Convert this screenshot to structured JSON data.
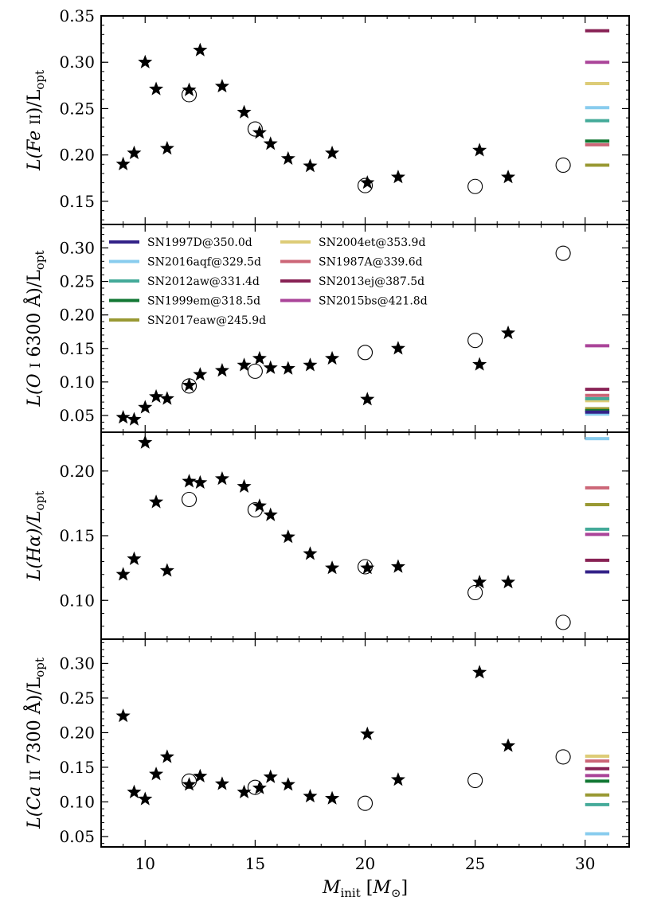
{
  "chart_data": {
    "type": "scatter",
    "xlabel": "M_init [M_⊙]",
    "xlim": [
      8,
      32
    ],
    "xticks": [
      10,
      15,
      20,
      25,
      30
    ],
    "colors": {
      "SN1997D@350.0d": "#332288",
      "SN2016aqf@329.5d": "#88ccee",
      "SN2012aw@331.4d": "#44aa99",
      "SN1999em@318.5d": "#117733",
      "SN2017eaw@245.9d": "#999933",
      "SN2004et@353.9d": "#ddcc77",
      "SN1987A@339.6d": "#cc6677",
      "SN2013ej@387.5d": "#882255",
      "SN2015bs@421.8d": "#aa4499"
    },
    "legend": {
      "location": "upper-left of panel 2",
      "entries": [
        "SN1997D@350.0d",
        "SN2016aqf@329.5d",
        "SN2012aw@331.4d",
        "SN1999em@318.5d",
        "SN2017eaw@245.9d",
        "SN2004et@353.9d",
        "SN1987A@339.6d",
        "SN2013ej@387.5d",
        "SN2015bs@421.8d"
      ]
    },
    "panels": [
      {
        "ylabel_main": "L(Fe ",
        "ylabel_ion": "II",
        "ylabel_tail": ")/L",
        "ylabel_sub": "opt",
        "ylim": [
          0.125,
          0.35
        ],
        "yticks": [
          0.15,
          0.2,
          0.25,
          0.3,
          0.35
        ],
        "ytick_labels": [
          "0.15",
          "0.20",
          "0.25",
          "0.30",
          "0.35"
        ],
        "stars": [
          [
            9.0,
            0.19
          ],
          [
            9.5,
            0.202
          ],
          [
            10.0,
            0.3
          ],
          [
            10.5,
            0.271
          ],
          [
            11.0,
            0.207
          ],
          [
            12.0,
            0.27
          ],
          [
            12.5,
            0.313
          ],
          [
            13.5,
            0.274
          ],
          [
            14.5,
            0.246
          ],
          [
            15.2,
            0.224
          ],
          [
            15.7,
            0.212
          ],
          [
            16.5,
            0.196
          ],
          [
            17.5,
            0.188
          ],
          [
            18.5,
            0.202
          ],
          [
            20.1,
            0.17
          ],
          [
            21.5,
            0.176
          ],
          [
            25.2,
            0.205
          ],
          [
            26.5,
            0.176
          ]
        ],
        "circles": [
          [
            12.0,
            0.265
          ],
          [
            15.0,
            0.228
          ],
          [
            20.0,
            0.167
          ],
          [
            25.0,
            0.166
          ],
          [
            29.0,
            0.189
          ]
        ],
        "observed": [
          [
            "SN2013ej@387.5d",
            0.334
          ],
          [
            "SN2015bs@421.8d",
            0.3
          ],
          [
            "SN2004et@353.9d",
            0.277
          ],
          [
            "SN2016aqf@329.5d",
            0.251
          ],
          [
            "SN2012aw@331.4d",
            0.237
          ],
          [
            "SN1999em@318.5d",
            0.215
          ],
          [
            "SN1987A@339.6d",
            0.211
          ],
          [
            "SN2017eaw@245.9d",
            0.189
          ]
        ]
      },
      {
        "ylabel_main": "L(O ",
        "ylabel_ion": "I",
        "ylabel_tail": " 6300 Å)/L",
        "ylabel_sub": "opt",
        "ylim": [
          0.025,
          0.335
        ],
        "yticks": [
          0.05,
          0.1,
          0.15,
          0.2,
          0.25,
          0.3
        ],
        "ytick_labels": [
          "0.05",
          "0.10",
          "0.15",
          "0.20",
          "0.25",
          "0.30"
        ],
        "stars": [
          [
            9.0,
            0.047
          ],
          [
            9.5,
            0.044
          ],
          [
            10.0,
            0.062
          ],
          [
            10.5,
            0.078
          ],
          [
            11.0,
            0.075
          ],
          [
            12.0,
            0.095
          ],
          [
            12.5,
            0.111
          ],
          [
            13.5,
            0.117
          ],
          [
            14.5,
            0.125
          ],
          [
            15.2,
            0.135
          ],
          [
            15.7,
            0.121
          ],
          [
            16.5,
            0.12
          ],
          [
            17.5,
            0.125
          ],
          [
            18.5,
            0.135
          ],
          [
            20.1,
            0.074
          ],
          [
            21.5,
            0.15
          ],
          [
            25.2,
            0.126
          ],
          [
            26.5,
            0.173
          ]
        ],
        "circles": [
          [
            12.0,
            0.094
          ],
          [
            15.0,
            0.116
          ],
          [
            20.0,
            0.144
          ],
          [
            25.0,
            0.162
          ],
          [
            29.0,
            0.292
          ]
        ],
        "observed": [
          [
            "SN2015bs@421.8d",
            0.154
          ],
          [
            "SN2013ej@387.5d",
            0.089
          ],
          [
            "SN1987A@339.6d",
            0.08
          ],
          [
            "SN2004et@353.9d",
            0.072
          ],
          [
            "SN2012aw@331.4d",
            0.075
          ],
          [
            "SN2017eaw@245.9d",
            0.06
          ],
          [
            "SN1999em@318.5d",
            0.057
          ],
          [
            "SN2016aqf@329.5d",
            0.052
          ],
          [
            "SN1997D@350.0d",
            0.055
          ]
        ]
      },
      {
        "ylabel_main": "L(Hα)/L",
        "ylabel_ion": "",
        "ylabel_tail": "",
        "ylabel_sub": "opt",
        "ylim": [
          0.07,
          0.23
        ],
        "yticks": [
          0.1,
          0.15,
          0.2
        ],
        "ytick_labels": [
          "0.10",
          "0.15",
          "0.20"
        ],
        "stars": [
          [
            9.0,
            0.12
          ],
          [
            9.5,
            0.132
          ],
          [
            10.0,
            0.222
          ],
          [
            10.5,
            0.176
          ],
          [
            11.0,
            0.123
          ],
          [
            12.0,
            0.192
          ],
          [
            12.5,
            0.191
          ],
          [
            13.5,
            0.194
          ],
          [
            14.5,
            0.188
          ],
          [
            15.2,
            0.173
          ],
          [
            15.7,
            0.166
          ],
          [
            16.5,
            0.149
          ],
          [
            17.5,
            0.136
          ],
          [
            18.5,
            0.125
          ],
          [
            20.1,
            0.125
          ],
          [
            21.5,
            0.126
          ],
          [
            25.2,
            0.114
          ],
          [
            26.5,
            0.114
          ]
        ],
        "circles": [
          [
            12.0,
            0.178
          ],
          [
            15.0,
            0.17
          ],
          [
            20.0,
            0.126
          ],
          [
            25.0,
            0.106
          ],
          [
            29.0,
            0.083
          ]
        ],
        "observed": [
          [
            "SN2016aqf@329.5d",
            0.225
          ],
          [
            "SN1987A@339.6d",
            0.187
          ],
          [
            "SN2017eaw@245.9d",
            0.174
          ],
          [
            "SN2012aw@331.4d",
            0.155
          ],
          [
            "SN2015bs@421.8d",
            0.151
          ],
          [
            "SN2013ej@387.5d",
            0.131
          ],
          [
            "SN1997D@350.0d",
            0.122
          ]
        ]
      },
      {
        "ylabel_main": "L(Ca ",
        "ylabel_ion": "II",
        "ylabel_tail": " 7300 Å)/L",
        "ylabel_sub": "opt",
        "ylim": [
          0.035,
          0.335
        ],
        "yticks": [
          0.05,
          0.1,
          0.15,
          0.2,
          0.25,
          0.3
        ],
        "ytick_labels": [
          "0.05",
          "0.10",
          "0.15",
          "0.20",
          "0.25",
          "0.30"
        ],
        "stars": [
          [
            9.0,
            0.224
          ],
          [
            9.5,
            0.114
          ],
          [
            10.0,
            0.104
          ],
          [
            10.5,
            0.14
          ],
          [
            11.0,
            0.165
          ],
          [
            12.0,
            0.125
          ],
          [
            12.5,
            0.137
          ],
          [
            13.5,
            0.126
          ],
          [
            14.5,
            0.114
          ],
          [
            15.2,
            0.12
          ],
          [
            15.7,
            0.136
          ],
          [
            16.5,
            0.125
          ],
          [
            17.5,
            0.108
          ],
          [
            18.5,
            0.105
          ],
          [
            20.1,
            0.198
          ],
          [
            21.5,
            0.132
          ],
          [
            25.2,
            0.287
          ],
          [
            26.5,
            0.181
          ]
        ],
        "circles": [
          [
            12.0,
            0.13
          ],
          [
            15.0,
            0.121
          ],
          [
            20.0,
            0.098
          ],
          [
            25.0,
            0.131
          ],
          [
            29.0,
            0.165
          ]
        ],
        "observed": [
          [
            "SN2004et@353.9d",
            0.166
          ],
          [
            "SN1987A@339.6d",
            0.159
          ],
          [
            "SN2013ej@387.5d",
            0.148
          ],
          [
            "SN2015bs@421.8d",
            0.138
          ],
          [
            "SN1999em@318.5d",
            0.13
          ],
          [
            "SN2017eaw@245.9d",
            0.11
          ],
          [
            "SN2012aw@331.4d",
            0.096
          ],
          [
            "SN2016aqf@329.5d",
            0.054
          ]
        ]
      }
    ]
  }
}
